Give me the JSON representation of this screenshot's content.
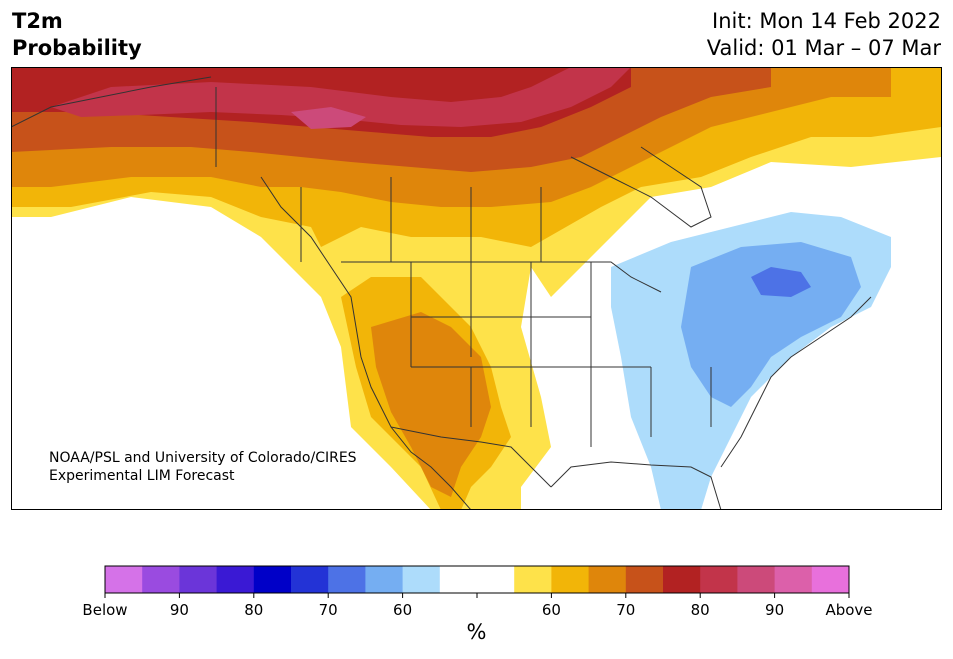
{
  "header": {
    "title_line1": "T2m",
    "title_line2": "Probability",
    "init": "Init: Mon 14 Feb 2022",
    "valid": "Valid: 01 Mar – 07 Mar"
  },
  "credit": {
    "line1": "NOAA/PSL and University of Colorado/CIRES",
    "line2": "Experimental LIM Forecast"
  },
  "legend": {
    "colors": [
      "#d572e8",
      "#9a4be0",
      "#6b35d9",
      "#3a19d4",
      "#0000c8",
      "#2333d6",
      "#4d72e6",
      "#75aef2",
      "#addcfb",
      "#ffffff",
      "#ffffff",
      "#fee24a",
      "#f2b508",
      "#df860b",
      "#c7521a",
      "#b22222",
      "#c2344a",
      "#cc4a7a",
      "#dc60aa",
      "#e870dc"
    ],
    "tick_labels": [
      "Below",
      "90",
      "80",
      "70",
      "60",
      "",
      "60",
      "70",
      "80",
      "90",
      "Above"
    ],
    "unit": "%"
  },
  "map": {
    "palette": {
      "below60": "#addcfb",
      "below70": "#75aef2",
      "below80": "#4d72e6",
      "above50": "#fee24a",
      "above60": "#f2b508",
      "above70": "#df860b",
      "above75": "#c7521a",
      "above80": "#b22222",
      "above85": "#c2344a",
      "above90": "#cc4a7a",
      "ocean": "#ffffff",
      "border": "#333333"
    }
  }
}
